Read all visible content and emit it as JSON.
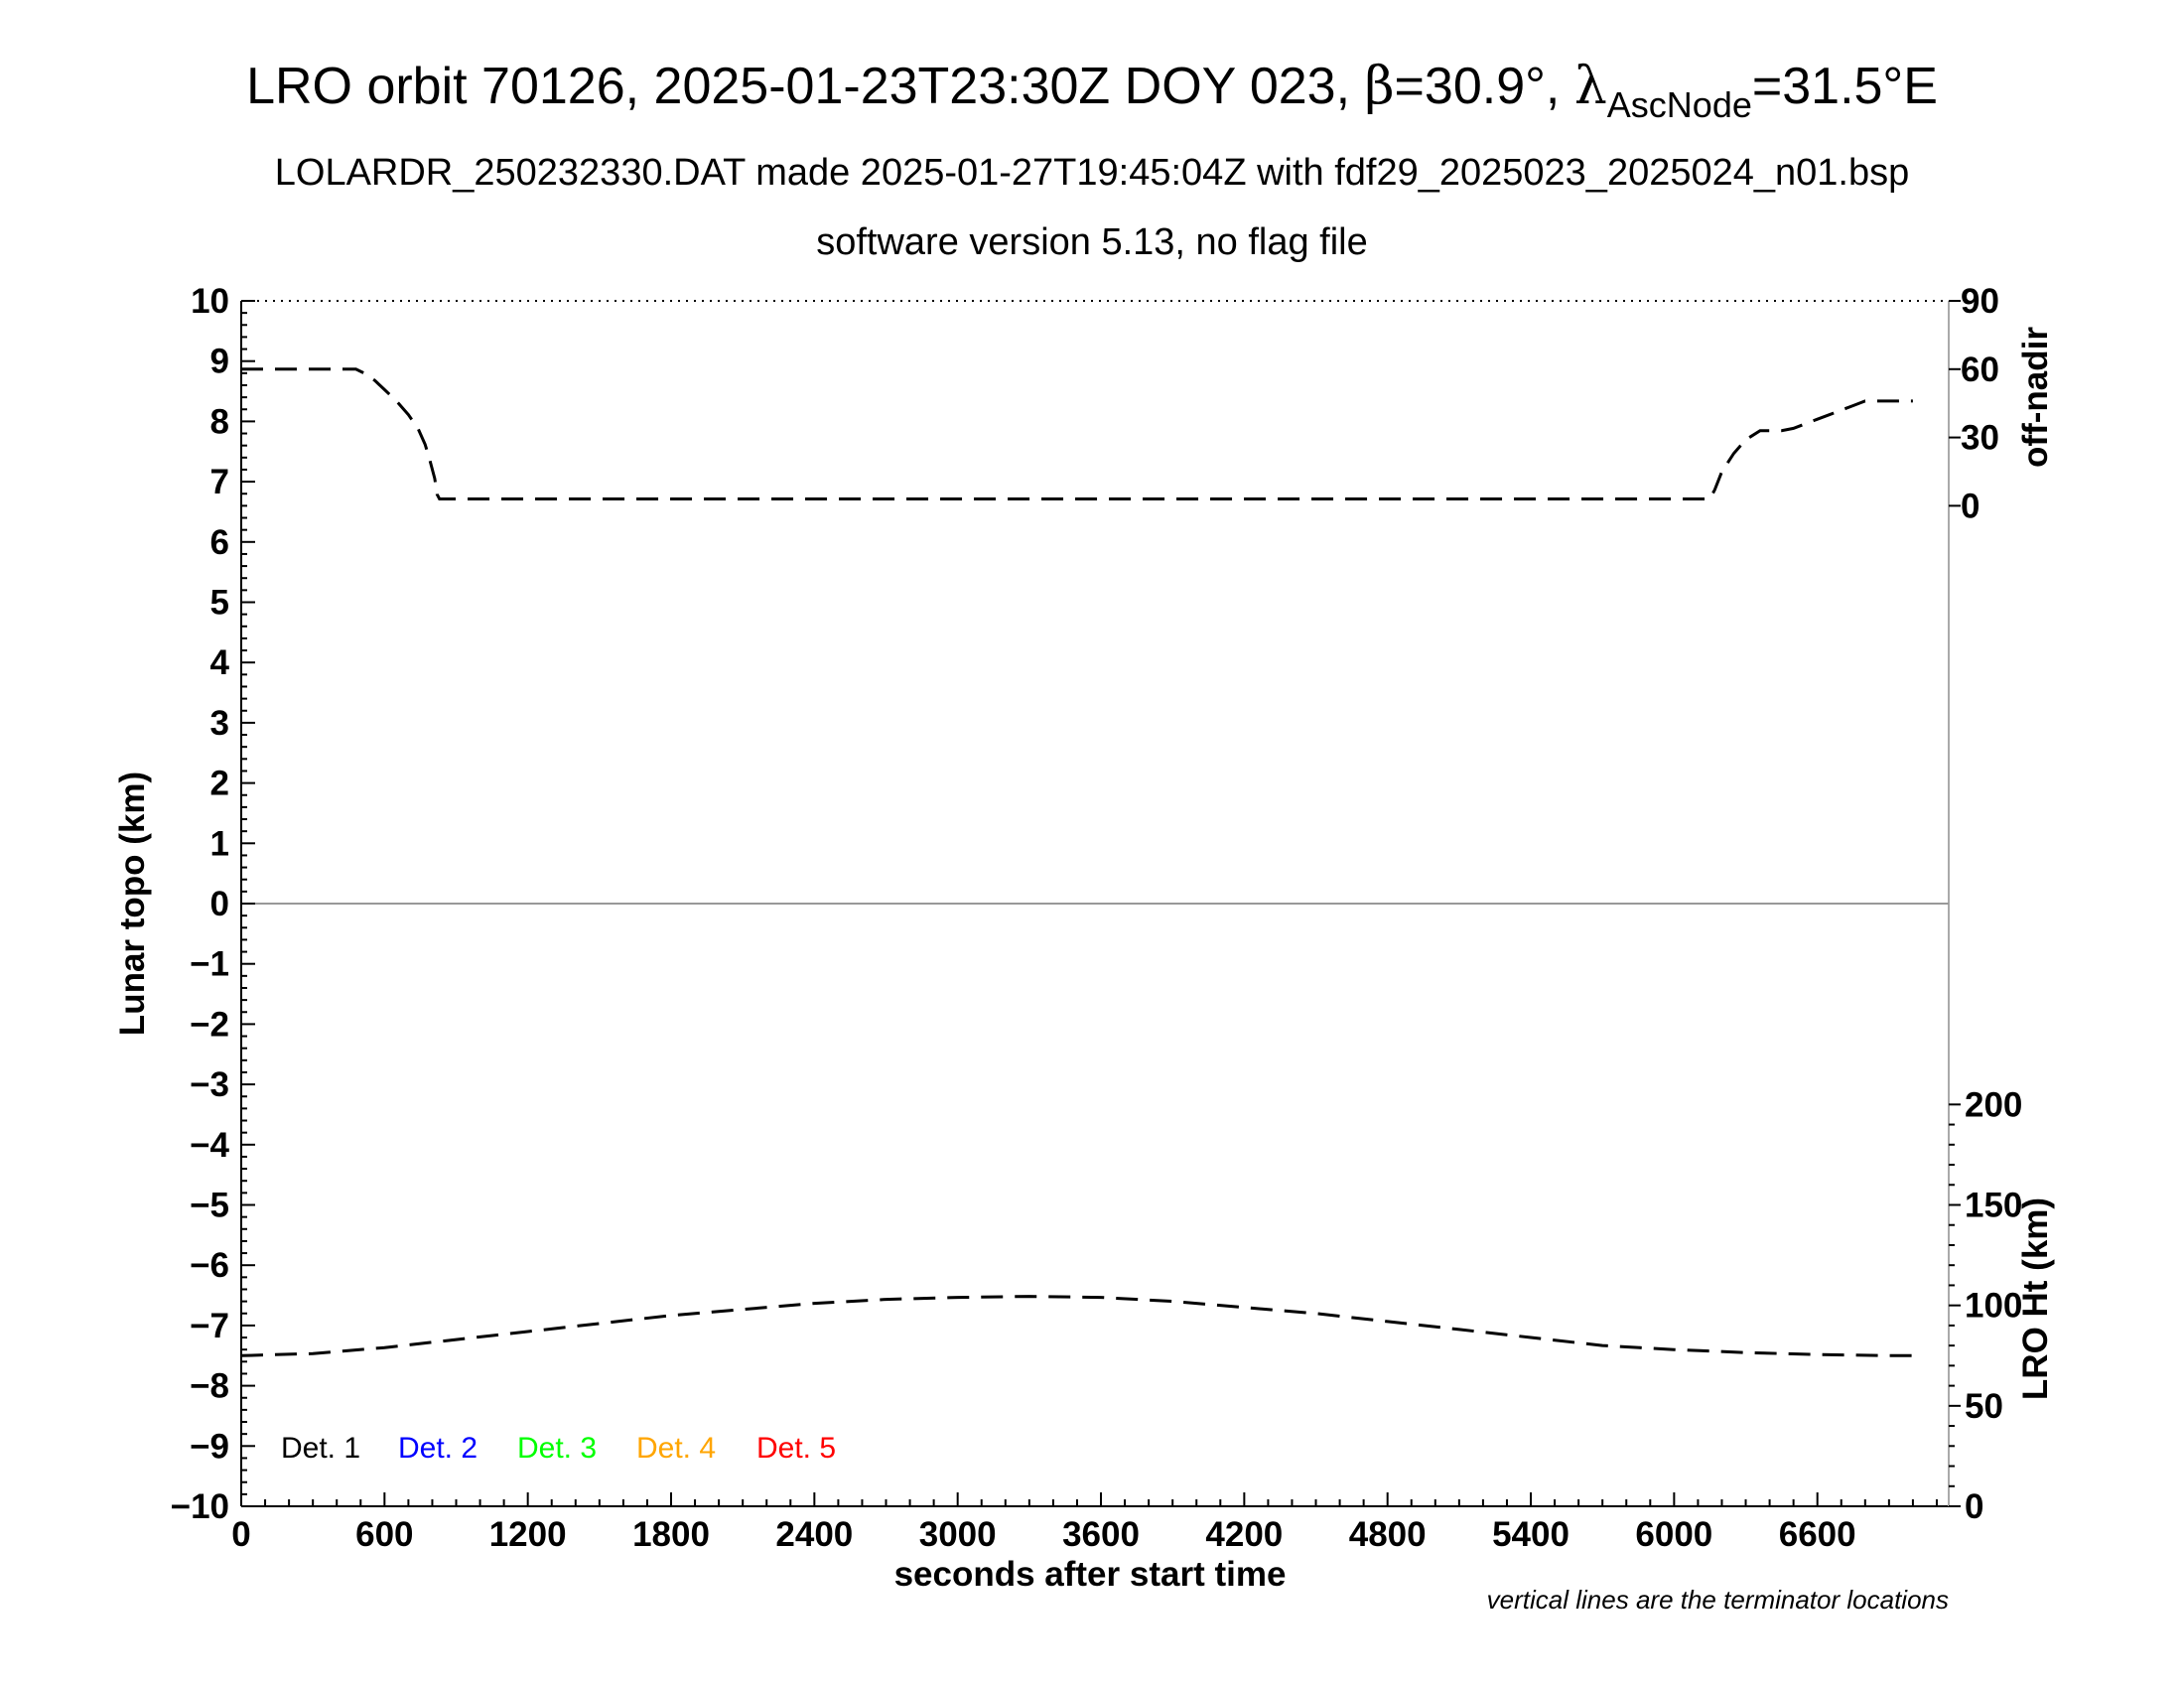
{
  "chart_data": {
    "type": "line",
    "title": {
      "prefix": "LRO orbit 70126, 2025-01-23T23:30Z DOY 023, ",
      "beta_symbol": "β",
      "beta_value": "=30.9°, ",
      "lambda_symbol": "λ",
      "lambda_sub": "AscNode",
      "lambda_value": "=31.5°E"
    },
    "subtitle_1": "LOLARDR_250232330.DAT made 2025-01-27T19:45:04Z with fdf29_2025023_2025024_n01.bsp",
    "subtitle_2": "software version 5.13, no flag file",
    "xlabel": "seconds after start time",
    "ylabel_left": "Lunar topo (km)",
    "ylabel_right_top": "off-nadir",
    "ylabel_right_bottom": "LRO Ht (km)",
    "note": "vertical lines are the terminator locations",
    "xlim": [
      0,
      7150
    ],
    "ylim": [
      -10,
      10
    ],
    "x_ticks": [
      0,
      600,
      1200,
      1800,
      2400,
      3000,
      3600,
      4200,
      4800,
      5400,
      6000,
      6600
    ],
    "y_ticks": [
      10,
      9,
      8,
      7,
      6,
      5,
      4,
      3,
      2,
      1,
      0,
      -1,
      -2,
      -3,
      -4,
      -5,
      -6,
      -7,
      -8,
      -9,
      -10
    ],
    "y_tick_labels": [
      "10",
      "9",
      "8",
      "7",
      "6",
      "5",
      "4",
      "3",
      "2",
      "1",
      "0",
      "−1",
      "−2",
      "−3",
      "−4",
      "−5",
      "−6",
      "−7",
      "−8",
      "−9",
      "−10"
    ],
    "right_axis_offnadir": {
      "ticks": [
        0,
        30,
        60,
        90
      ],
      "ylim_topo": [
        6.6,
        10
      ],
      "ylim_deg": [
        0,
        90
      ]
    },
    "right_axis_height": {
      "ticks": [
        0,
        50,
        100,
        150,
        200
      ],
      "ylim_km": [
        0,
        600
      ]
    },
    "legend": [
      {
        "label": "Det. 1",
        "color": "#000000"
      },
      {
        "label": "Det. 2",
        "color": "#0000ff"
      },
      {
        "label": "Det. 3",
        "color": "#00ff00"
      },
      {
        "label": "Det. 4",
        "color": "#ffa500"
      },
      {
        "label": "Det. 5",
        "color": "#ff0000"
      }
    ],
    "zero_line": 0,
    "grid": false,
    "series": [
      {
        "axis": "off-nadir",
        "x": [
          0,
          100,
          200,
          300,
          400,
          480,
          520,
          560,
          600,
          650,
          700,
          740,
          770,
          790,
          810,
          820,
          830,
          1000,
          2000,
          3000,
          4000,
          5000,
          5800,
          6150,
          6170,
          6200,
          6250,
          6300,
          6360,
          6400,
          6450,
          6500,
          6550,
          6600,
          6650,
          6700,
          6750,
          6800,
          6900,
          7000
        ],
        "y": [
          60,
          60,
          60,
          60,
          60,
          60,
          58,
          55,
          51,
          46,
          40,
          34,
          27,
          20,
          12,
          5,
          3,
          3,
          3,
          3,
          3,
          3,
          3,
          3,
          7,
          15,
          23,
          29,
          33,
          33,
          33,
          34,
          36,
          38,
          40,
          42,
          44,
          46,
          46,
          46
        ]
      },
      {
        "axis": "height",
        "x": [
          0,
          300,
          600,
          900,
          1200,
          1500,
          1800,
          2100,
          2400,
          2700,
          3000,
          3300,
          3600,
          3900,
          4200,
          4500,
          4800,
          5100,
          5400,
          5700,
          6000,
          6300,
          6600,
          6900,
          7000
        ],
        "y": [
          75,
          76,
          79,
          83,
          87,
          91,
          95,
          98,
          101,
          103,
          104,
          104.5,
          104,
          102,
          99,
          96,
          92,
          88,
          84,
          80,
          78,
          76.5,
          75.5,
          75,
          75
        ]
      }
    ]
  }
}
